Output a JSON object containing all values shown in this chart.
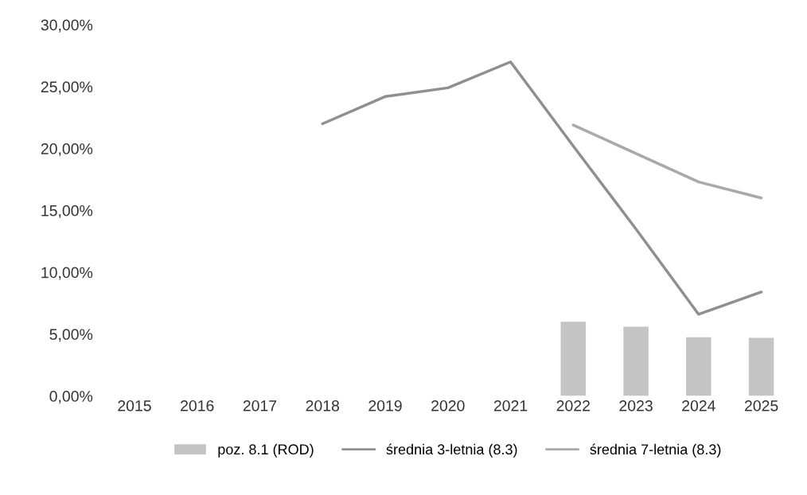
{
  "chart_data": {
    "type": "bar",
    "categories": [
      "2015",
      "2016",
      "2017",
      "2018",
      "2019",
      "2020",
      "2021",
      "2022",
      "2023",
      "2024",
      "2025"
    ],
    "series": [
      {
        "name": "poz. 8.1 (ROD)",
        "color": "#c4c4c4",
        "values": [
          null,
          null,
          null,
          null,
          null,
          null,
          null,
          6.0,
          5.6,
          4.75,
          4.7
        ]
      },
      {
        "name": "średnia 3-letnia (8.3)",
        "type": "line",
        "color": "#8f8f8f",
        "values": [
          null,
          null,
          null,
          22.0,
          24.2,
          24.9,
          27.0,
          20.2,
          13.5,
          6.6,
          8.4
        ]
      },
      {
        "name": "średnia 7-letnia (8.3)",
        "type": "line",
        "color": "#a9a9a9",
        "values": [
          null,
          null,
          null,
          null,
          null,
          null,
          null,
          21.9,
          19.6,
          17.3,
          16.0
        ]
      }
    ],
    "ylim": [
      0,
      30
    ],
    "yticks": [
      {
        "value": 0,
        "label": "0,00%"
      },
      {
        "value": 5,
        "label": "5,00%"
      },
      {
        "value": 10,
        "label": "10,00%"
      },
      {
        "value": 15,
        "label": "15,00%"
      },
      {
        "value": 20,
        "label": "20,00%"
      },
      {
        "value": 25,
        "label": "25,00%"
      },
      {
        "value": 30,
        "label": "30,00%"
      }
    ],
    "legend": "bottom"
  }
}
